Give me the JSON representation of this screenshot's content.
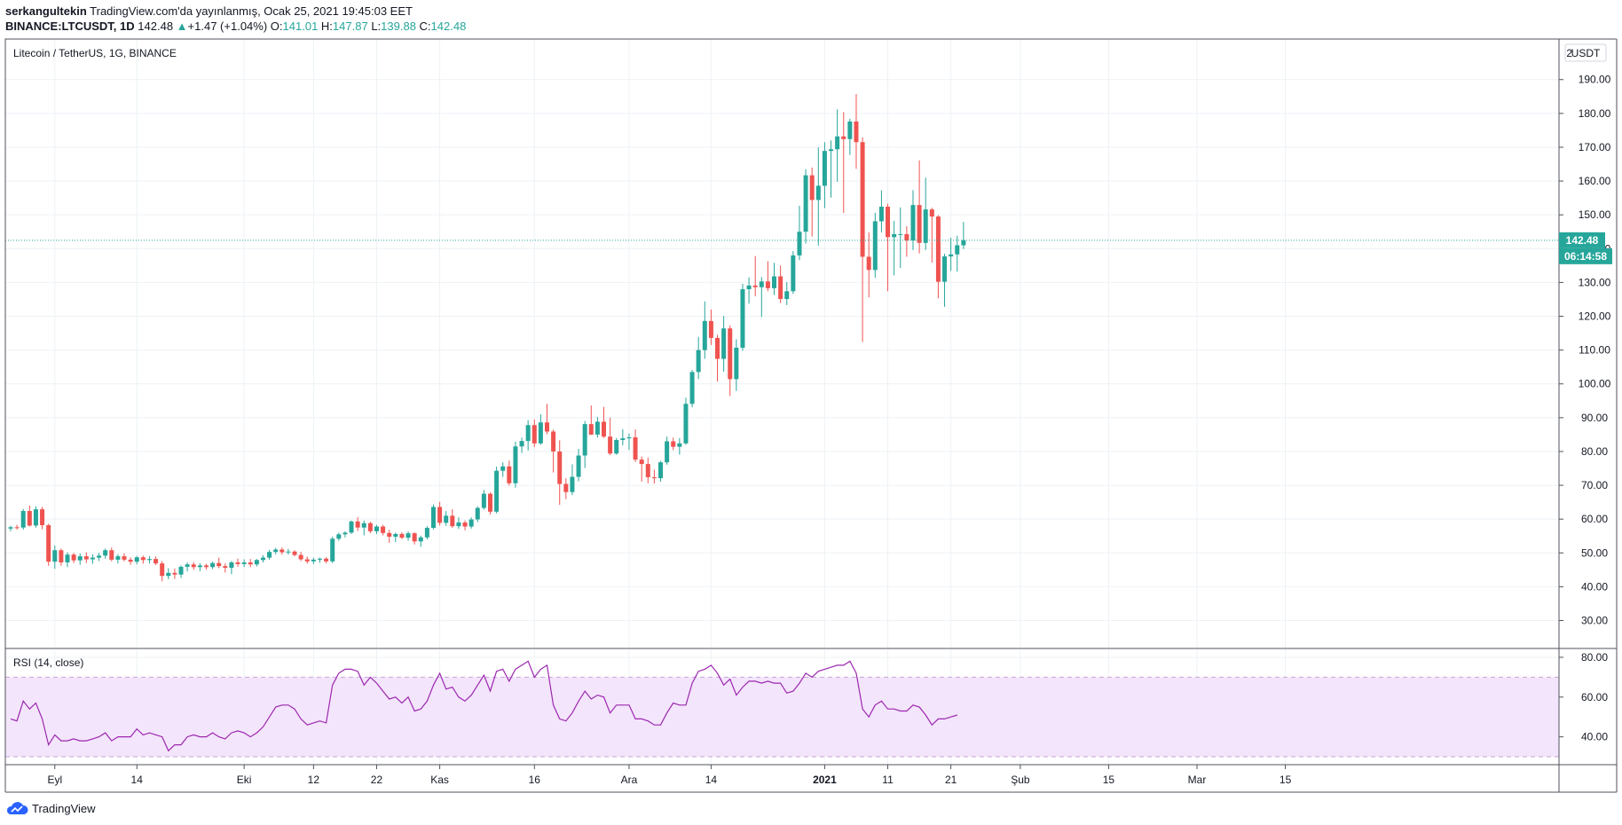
{
  "header": {
    "author": "serkangultekin",
    "published": "TradingView.com'da yayınlanmış, Ocak 25, 2021 19:45:03 EET",
    "symbol": "BINANCE:LTCUSDT, 1D",
    "last": "142.48",
    "change_arrow": "▲",
    "change": "+1.47 (+1.04%)",
    "open_label": "O:",
    "open": "141.01",
    "high_label": "H:",
    "high": "147.87",
    "low_label": "L:",
    "low": "139.88",
    "close_label": "C:",
    "close": "142.48"
  },
  "footer": {
    "brand": "TradingView",
    "icon": "tradingview-cloud-icon"
  },
  "colors": {
    "up": "#26a69a",
    "down": "#ef5350",
    "rsi": "#9c27b0",
    "rsi_band": "#f3e5fb",
    "grid": "#eef2f6",
    "border": "#50535e"
  },
  "chart_data": [
    {
      "type": "candlestick",
      "title": "Litecoin / TetherUS, 1G, BINANCE",
      "currency": "USDT",
      "price_axis_top_label": "2",
      "ylim": [
        22,
        202
      ],
      "yticks": [
        30,
        40,
        50,
        60,
        70,
        80,
        90,
        100,
        110,
        120,
        130,
        140,
        150,
        160,
        170,
        180,
        190
      ],
      "ytick_labels": [
        "30.00",
        "40.00",
        "50.00",
        "60.00",
        "70.00",
        "80.00",
        "90.00",
        "100.00",
        "110.00",
        "120.00",
        "130.00",
        "140.00",
        "150.00",
        "160.00",
        "170.00",
        "180.00",
        "190.00"
      ],
      "x_start_date": "2020-08-25",
      "x_range_days": [
        0,
        174.5
      ],
      "x_ticks": [
        {
          "day": 7,
          "label": "Eyl"
        },
        {
          "day": 20,
          "label": "14"
        },
        {
          "day": 37,
          "label": "Eki"
        },
        {
          "day": 48,
          "label": "12"
        },
        {
          "day": 58,
          "label": "22"
        },
        {
          "day": 68,
          "label": "Kas"
        },
        {
          "day": 83,
          "label": "16"
        },
        {
          "day": 98,
          "label": "Ara"
        },
        {
          "day": 111,
          "label": "14"
        },
        {
          "day": 129,
          "label": "2021",
          "bold": true
        },
        {
          "day": 139,
          "label": "11"
        },
        {
          "day": 149,
          "label": "21"
        },
        {
          "day": 160,
          "label": "Şub"
        },
        {
          "day": 174,
          "label": "15"
        },
        {
          "day": 188,
          "label": "Mar"
        },
        {
          "day": 202,
          "label": "15"
        }
      ],
      "last_price": 142.48,
      "last_price_label": "142.48",
      "countdown": "06:14:58",
      "ohlc": [
        [
          57.2,
          58.0,
          56.4,
          57.6
        ],
        [
          57.6,
          58.3,
          56.9,
          57.5
        ],
        [
          57.5,
          63.0,
          56.9,
          62.4
        ],
        [
          62.4,
          64.0,
          57.8,
          58.1
        ],
        [
          58.1,
          63.8,
          57.5,
          62.9
        ],
        [
          62.9,
          63.6,
          57.0,
          58.2
        ],
        [
          58.2,
          58.6,
          46.2,
          47.4
        ],
        [
          47.4,
          52.2,
          45.3,
          50.8
        ],
        [
          50.8,
          51.3,
          46.2,
          47.2
        ],
        [
          47.2,
          50.2,
          45.8,
          49.5
        ],
        [
          49.5,
          50.0,
          47.0,
          47.8
        ],
        [
          47.8,
          49.8,
          46.5,
          49.0
        ],
        [
          49.0,
          50.2,
          47.0,
          48.1
        ],
        [
          48.1,
          49.6,
          46.8,
          48.6
        ],
        [
          48.6,
          50.0,
          47.6,
          49.2
        ],
        [
          49.2,
          51.3,
          48.3,
          50.8
        ],
        [
          50.8,
          51.6,
          47.5,
          48.0
        ],
        [
          48.0,
          49.6,
          46.9,
          49.0
        ],
        [
          49.0,
          49.9,
          47.5,
          48.0
        ],
        [
          48.0,
          48.7,
          46.5,
          47.4
        ],
        [
          47.4,
          49.1,
          46.6,
          48.7
        ],
        [
          48.7,
          49.2,
          46.8,
          47.9
        ],
        [
          47.9,
          49.0,
          46.9,
          48.2
        ],
        [
          48.2,
          48.9,
          46.4,
          46.9
        ],
        [
          46.9,
          47.6,
          41.6,
          43.2
        ],
        [
          43.2,
          45.5,
          42.2,
          44.1
        ],
        [
          44.1,
          45.4,
          42.3,
          43.6
        ],
        [
          43.6,
          46.3,
          42.6,
          45.9
        ],
        [
          45.9,
          47.2,
          44.5,
          46.6
        ],
        [
          46.6,
          47.3,
          45.0,
          45.8
        ],
        [
          45.8,
          47.0,
          44.6,
          46.3
        ],
        [
          46.3,
          46.8,
          45.1,
          45.8
        ],
        [
          45.8,
          47.4,
          45.2,
          47.0
        ],
        [
          47.0,
          48.6,
          45.5,
          46.1
        ],
        [
          46.1,
          46.9,
          44.2,
          45.6
        ],
        [
          45.6,
          47.6,
          43.7,
          47.2
        ],
        [
          47.2,
          48.3,
          45.9,
          46.7
        ],
        [
          46.7,
          48.1,
          45.8,
          47.2
        ],
        [
          47.2,
          48.2,
          45.8,
          46.6
        ],
        [
          46.6,
          48.2,
          46.0,
          47.9
        ],
        [
          47.9,
          49.3,
          47.2,
          48.6
        ],
        [
          48.6,
          50.9,
          48.0,
          50.3
        ],
        [
          50.3,
          51.5,
          49.6,
          51.0
        ],
        [
          51.0,
          51.6,
          49.5,
          50.2
        ],
        [
          50.2,
          51.2,
          49.5,
          50.4
        ],
        [
          50.4,
          50.8,
          49.0,
          49.4
        ],
        [
          49.4,
          50.3,
          47.6,
          48.1
        ],
        [
          48.1,
          48.9,
          46.8,
          47.5
        ],
        [
          47.5,
          48.6,
          46.7,
          48.0
        ],
        [
          48.0,
          48.6,
          47.1,
          48.3
        ],
        [
          48.3,
          48.7,
          46.9,
          47.5
        ],
        [
          47.5,
          54.8,
          47.0,
          54.2
        ],
        [
          54.2,
          56.0,
          53.6,
          55.5
        ],
        [
          55.5,
          56.4,
          54.6,
          56.0
        ],
        [
          56.0,
          59.6,
          55.6,
          59.3
        ],
        [
          59.3,
          60.6,
          56.5,
          57.5
        ],
        [
          57.5,
          59.6,
          55.2,
          58.8
        ],
        [
          58.8,
          59.2,
          55.8,
          56.4
        ],
        [
          56.4,
          58.3,
          55.6,
          57.8
        ],
        [
          57.8,
          58.3,
          55.2,
          55.9
        ],
        [
          55.9,
          56.8,
          53.0,
          54.8
        ],
        [
          54.8,
          56.0,
          53.2,
          55.6
        ],
        [
          55.6,
          56.1,
          54.1,
          54.5
        ],
        [
          54.5,
          56.4,
          53.6,
          55.8
        ],
        [
          55.8,
          56.1,
          52.5,
          53.4
        ],
        [
          53.4,
          55.1,
          51.8,
          54.6
        ],
        [
          54.6,
          57.9,
          54.0,
          57.4
        ],
        [
          57.4,
          64.3,
          57.0,
          63.6
        ],
        [
          63.6,
          65.1,
          58.1,
          58.9
        ],
        [
          58.9,
          62.4,
          58.0,
          61.0
        ],
        [
          61.0,
          62.9,
          57.4,
          57.9
        ],
        [
          57.9,
          60.5,
          57.1,
          59.0
        ],
        [
          59.0,
          59.6,
          56.7,
          57.8
        ],
        [
          57.8,
          60.5,
          57.2,
          59.9
        ],
        [
          59.9,
          63.8,
          59.1,
          63.3
        ],
        [
          63.3,
          68.6,
          62.8,
          67.5
        ],
        [
          67.5,
          67.9,
          61.4,
          62.2
        ],
        [
          62.2,
          75.5,
          61.7,
          74.3
        ],
        [
          74.3,
          76.8,
          72.5,
          75.6
        ],
        [
          75.6,
          77.3,
          69.9,
          70.6
        ],
        [
          70.6,
          82.9,
          69.3,
          81.5
        ],
        [
          81.5,
          84.1,
          79.6,
          83.1
        ],
        [
          83.1,
          89.3,
          80.3,
          87.8
        ],
        [
          87.8,
          89.5,
          81.3,
          82.4
        ],
        [
          82.4,
          91.0,
          82.0,
          88.6
        ],
        [
          88.6,
          94.1,
          85.1,
          85.9
        ],
        [
          85.9,
          86.5,
          73.8,
          80.0
        ],
        [
          80.0,
          83.3,
          64.2,
          70.4
        ],
        [
          70.4,
          72.1,
          65.9,
          68.0
        ],
        [
          68.0,
          76.2,
          67.1,
          72.5
        ],
        [
          72.5,
          80.8,
          71.2,
          78.8
        ],
        [
          78.8,
          89.0,
          75.1,
          88.1
        ],
        [
          88.1,
          93.6,
          84.9,
          85.0
        ],
        [
          85.0,
          90.2,
          84.1,
          88.8
        ],
        [
          88.8,
          93.2,
          84.0,
          84.4
        ],
        [
          84.4,
          90.0,
          78.9,
          79.4
        ],
        [
          79.4,
          84.0,
          79.0,
          83.4
        ],
        [
          83.4,
          86.6,
          81.8,
          83.9
        ],
        [
          83.9,
          85.3,
          80.5,
          84.2
        ],
        [
          84.2,
          86.5,
          76.9,
          77.6
        ],
        [
          77.6,
          78.5,
          71.1,
          76.3
        ],
        [
          76.3,
          78.2,
          70.6,
          72.4
        ],
        [
          72.4,
          74.6,
          70.5,
          72.1
        ],
        [
          72.1,
          77.2,
          71.1,
          76.8
        ],
        [
          76.8,
          84.4,
          76.1,
          83.0
        ],
        [
          83.0,
          84.1,
          80.4,
          81.4
        ],
        [
          81.4,
          84.0,
          79.1,
          82.4
        ],
        [
          82.4,
          95.9,
          82.0,
          94.1
        ],
        [
          94.1,
          104.1,
          93.1,
          103.5
        ],
        [
          103.5,
          113.9,
          101.4,
          110.0
        ],
        [
          110.0,
          124.4,
          107.4,
          118.6
        ],
        [
          118.6,
          122.0,
          111.5,
          113.6
        ],
        [
          113.6,
          114.5,
          100.7,
          107.4
        ],
        [
          107.4,
          120.1,
          103.6,
          116.4
        ],
        [
          116.4,
          117.3,
          96.4,
          101.4
        ],
        [
          101.4,
          113.2,
          97.9,
          110.7
        ],
        [
          110.7,
          129.6,
          109.8,
          128.0
        ],
        [
          128.0,
          131.5,
          123.7,
          129.1
        ],
        [
          129.1,
          137.8,
          125.9,
          128.6
        ],
        [
          128.6,
          131.6,
          119.8,
          130.3
        ],
        [
          130.3,
          136.3,
          127.4,
          128.3
        ],
        [
          128.3,
          135.8,
          126.3,
          131.8
        ],
        [
          131.8,
          135.0,
          123.9,
          125.1
        ],
        [
          125.1,
          130.1,
          123.3,
          127.4
        ],
        [
          127.4,
          139.3,
          126.6,
          138.0
        ],
        [
          138.0,
          152.7,
          136.6,
          145.0
        ],
        [
          145.0,
          163.5,
          141.5,
          161.7
        ],
        [
          161.7,
          164.0,
          143.6,
          154.4
        ],
        [
          154.4,
          170.0,
          140.9,
          158.6
        ],
        [
          158.6,
          171.5,
          152.0,
          168.9
        ],
        [
          168.9,
          172.0,
          155.1,
          169.4
        ],
        [
          169.4,
          181.2,
          159.8,
          173.2
        ],
        [
          173.2,
          180.4,
          150.6,
          172.4
        ],
        [
          172.4,
          178.4,
          167.7,
          177.6
        ],
        [
          177.6,
          185.7,
          163.6,
          171.5
        ],
        [
          171.5,
          172.9,
          112.4,
          137.6
        ],
        [
          137.6,
          144.8,
          125.6,
          133.7
        ],
        [
          133.7,
          150.6,
          131.4,
          148.1
        ],
        [
          148.1,
          157.2,
          144.8,
          152.4
        ],
        [
          152.4,
          153.3,
          127.4,
          143.4
        ],
        [
          143.4,
          148.2,
          132.1,
          144.3
        ],
        [
          144.3,
          152.2,
          134.3,
          144.3
        ],
        [
          144.3,
          146.6,
          137.6,
          142.4
        ],
        [
          142.4,
          157.3,
          139.6,
          152.9
        ],
        [
          152.9,
          166.1,
          138.6,
          141.7
        ],
        [
          141.7,
          161.0,
          139.6,
          151.6
        ],
        [
          151.6,
          152.1,
          135.9,
          149.5
        ],
        [
          149.5,
          149.9,
          125.3,
          130.2
        ],
        [
          130.2,
          138.5,
          122.8,
          137.7
        ],
        [
          137.7,
          143.2,
          133.4,
          138.3
        ],
        [
          138.3,
          143.8,
          133.2,
          141.0
        ],
        [
          141.0,
          147.9,
          139.9,
          142.5
        ]
      ]
    },
    {
      "type": "line",
      "title": "RSI (14, close)",
      "ylim": [
        26,
        84
      ],
      "yticks": [
        40,
        60,
        80
      ],
      "ytick_labels": [
        "40.00",
        "60.00",
        "80.00"
      ],
      "band": [
        30,
        70
      ],
      "values": [
        49,
        48,
        58,
        54,
        57,
        49,
        36,
        41,
        38,
        38,
        39,
        38,
        38,
        39,
        40,
        42,
        38,
        40,
        40,
        40,
        44,
        41,
        42,
        41,
        40,
        33,
        36,
        36,
        40,
        41,
        40,
        40,
        42,
        40,
        39,
        42,
        43,
        42,
        40,
        42,
        45,
        50,
        55,
        56,
        56,
        54,
        49,
        46,
        47,
        48,
        47,
        66,
        72,
        74,
        74,
        73,
        66,
        70,
        67,
        63,
        59,
        60,
        57,
        60,
        53,
        54,
        58,
        66,
        72,
        64,
        65,
        60,
        58,
        61,
        66,
        71,
        63,
        73,
        74,
        68,
        74,
        76,
        78,
        70,
        74,
        76,
        56,
        49,
        48,
        52,
        58,
        63,
        59,
        61,
        60,
        52,
        56,
        56,
        56,
        49,
        49,
        48,
        46,
        46,
        52,
        57,
        56,
        56,
        67,
        73,
        74,
        76,
        72,
        66,
        69,
        61,
        65,
        68,
        68,
        67,
        68,
        67,
        67,
        62,
        63,
        67,
        72,
        70,
        73,
        74,
        75,
        76,
        76,
        78,
        72,
        54,
        50,
        56,
        58,
        54,
        54,
        53,
        53,
        56,
        55,
        51,
        46,
        49,
        49,
        50,
        51
      ]
    }
  ]
}
